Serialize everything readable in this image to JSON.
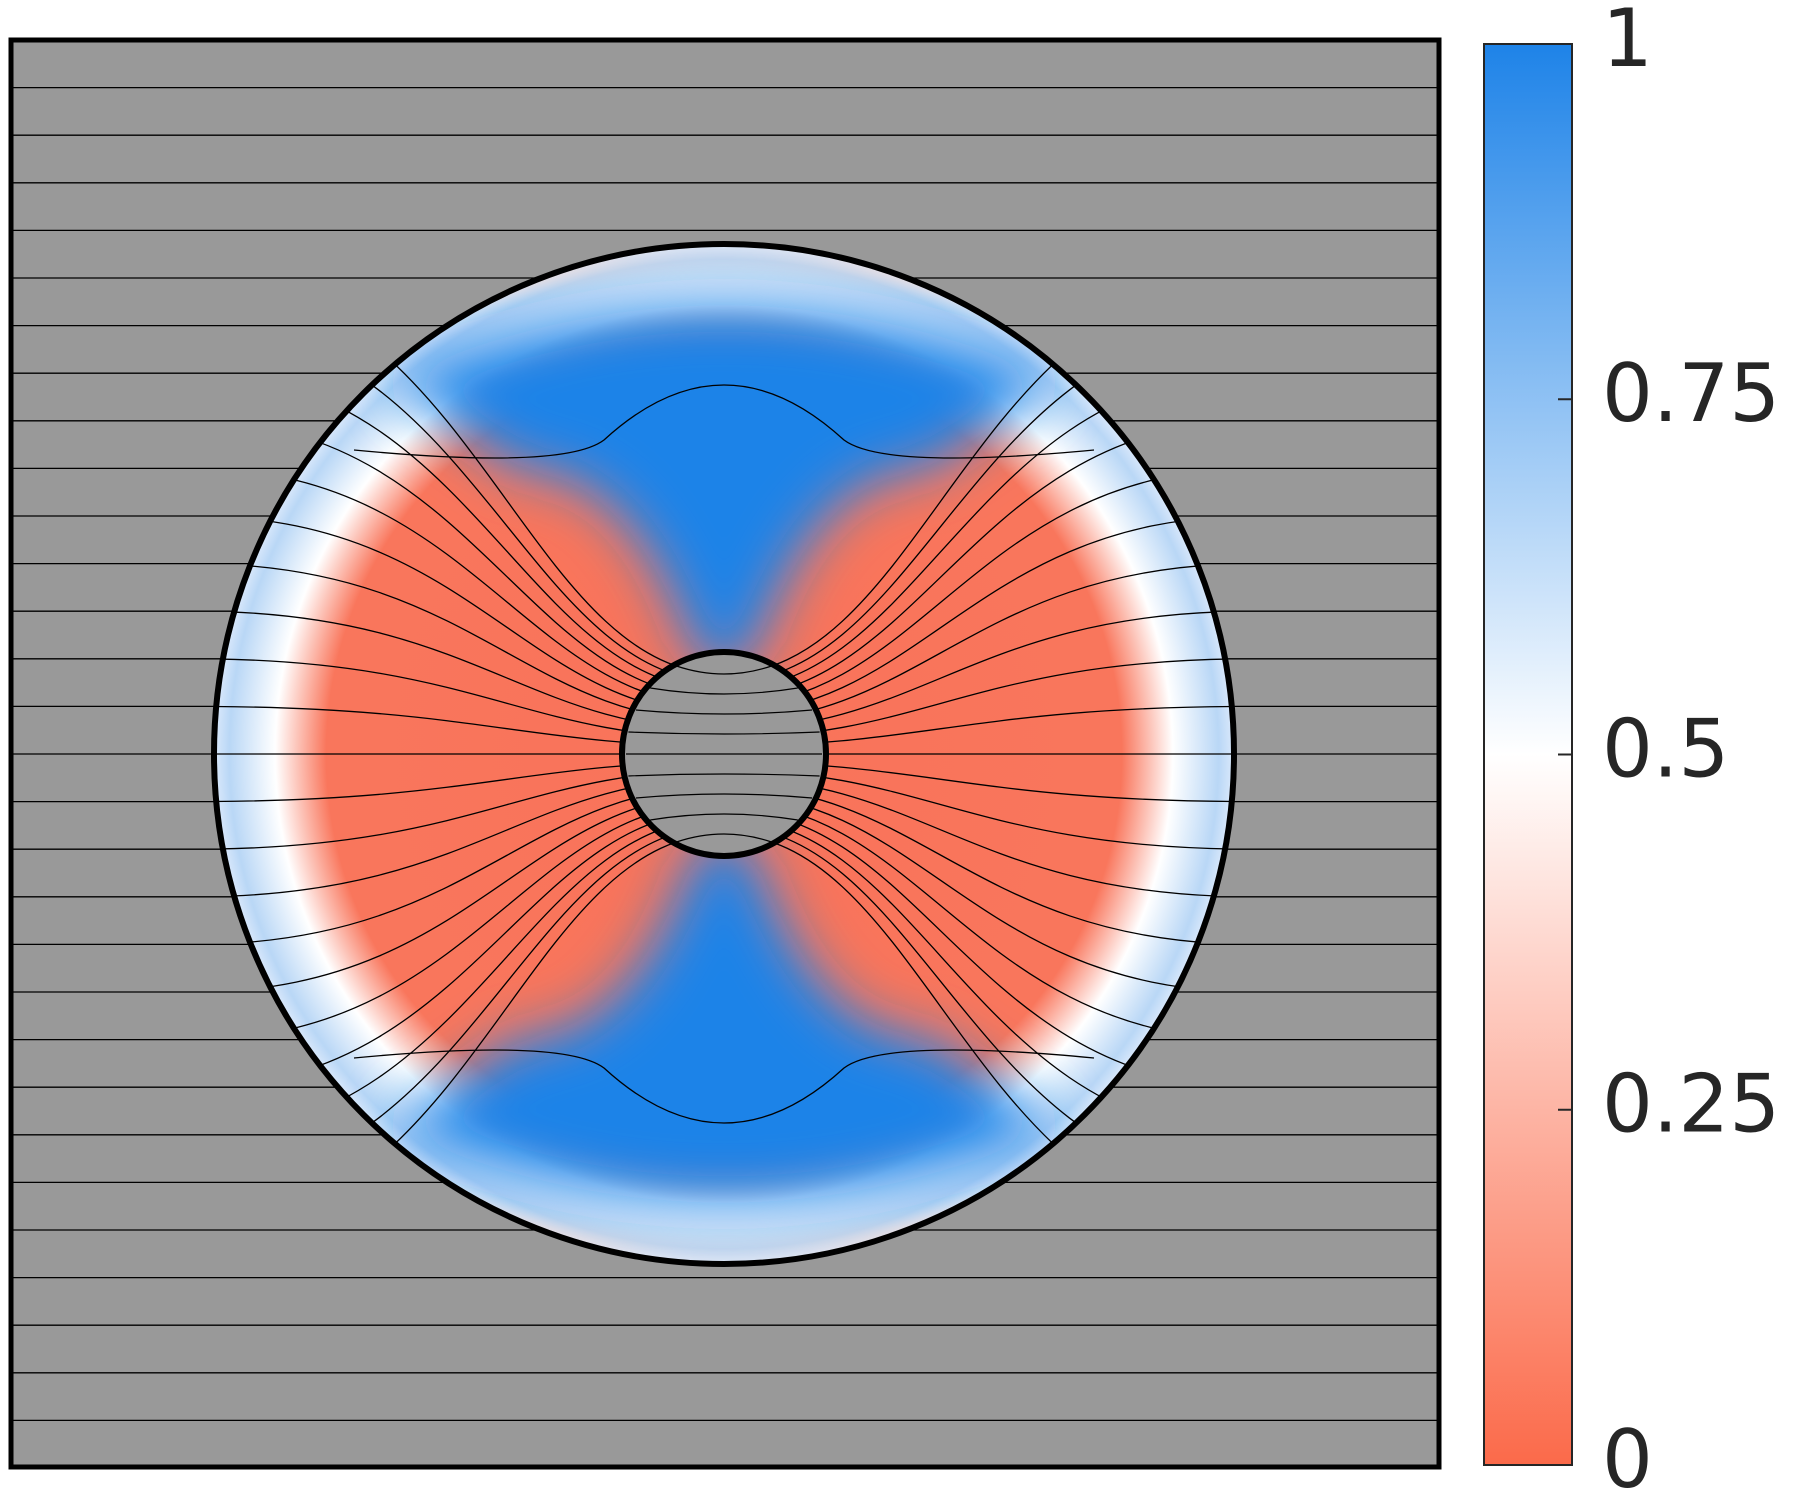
{
  "chart_data": {
    "type": "heatmap",
    "colorbar": {
      "ylim": [
        0,
        1
      ],
      "yticks": [
        0,
        0.25,
        0.5,
        0.75,
        1
      ],
      "colors": [
        "#fb6a4a",
        "#ffffff",
        "#1e83e8"
      ]
    }
  }
}
